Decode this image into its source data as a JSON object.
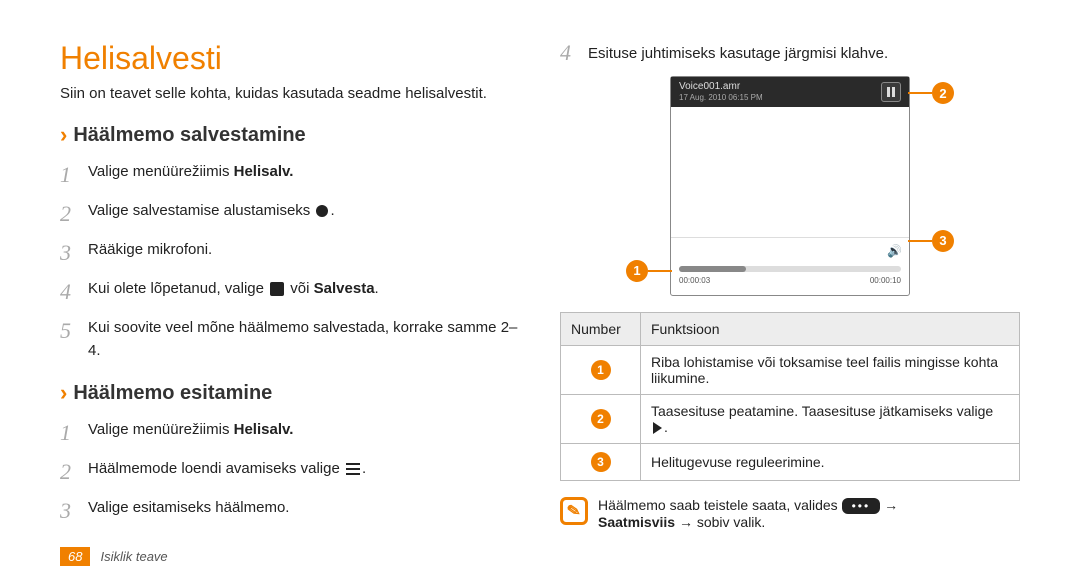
{
  "title": "Helisalvesti",
  "intro": "Siin on teavet selle kohta, kuidas kasutada seadme helisalvestit.",
  "sections": [
    {
      "heading": "Häälmemo salvestamine",
      "steps": [
        {
          "html": "Valige menüürežiimis <strong>Helisalv.</strong>"
        },
        {
          "html": "Valige salvestamise alustamiseks <span class='dot'></span>."
        },
        {
          "html": "Rääkige mikrofoni."
        },
        {
          "html": "Kui olete lõpetanud, valige <span class='sq'></span> või <strong>Salvesta</strong>."
        },
        {
          "html": "Kui soovite veel mõne häälmemo salvestada, korrake samme 2–4."
        }
      ]
    },
    {
      "heading": "Häälmemo esitamine",
      "steps": [
        {
          "html": "Valige menüürežiimis <strong>Helisalv.</strong>"
        },
        {
          "html": "Häälmemode loendi avamiseks valige <span class='list-icon'></span>."
        },
        {
          "html": "Valige esitamiseks häälmemo."
        }
      ]
    }
  ],
  "right_step": {
    "num": "4",
    "html": "Esituse juhtimiseks kasutage järgmisi klahve."
  },
  "device": {
    "filename": "Voice001.amr",
    "timestamp": "17 Aug. 2010 06:15 PM",
    "time_elapsed": "00:00:03",
    "time_total": "00:00:10",
    "progress_percent": 30
  },
  "callouts": {
    "1": "1",
    "2": "2",
    "3": "3"
  },
  "table": {
    "header": {
      "num": "Number",
      "func": "Funktsioon"
    },
    "rows": [
      {
        "num": "1",
        "html": "Riba lohistamise või toksamise teel failis mingisse kohta liikumine."
      },
      {
        "num": "2",
        "html": "Taasesituse peatamine. Taasesituse jätkamiseks valige <span class='play-tri'></span>."
      },
      {
        "num": "3",
        "html": "Helitugevuse reguleerimine."
      }
    ]
  },
  "note": {
    "line1_prefix": "Häälmemo saab teistele saata, valides ",
    "line1_suffix": " →",
    "line2_html": "<strong>Saatmisviis</strong> → sobiv valik."
  },
  "footer": {
    "page": "68",
    "category": "Isiklik teave"
  },
  "colors": {
    "accent": "#f08000",
    "text": "#222222",
    "grey_num": "#aaaaaa",
    "table_border": "#bbbbbb",
    "table_header_bg": "#ededed"
  }
}
